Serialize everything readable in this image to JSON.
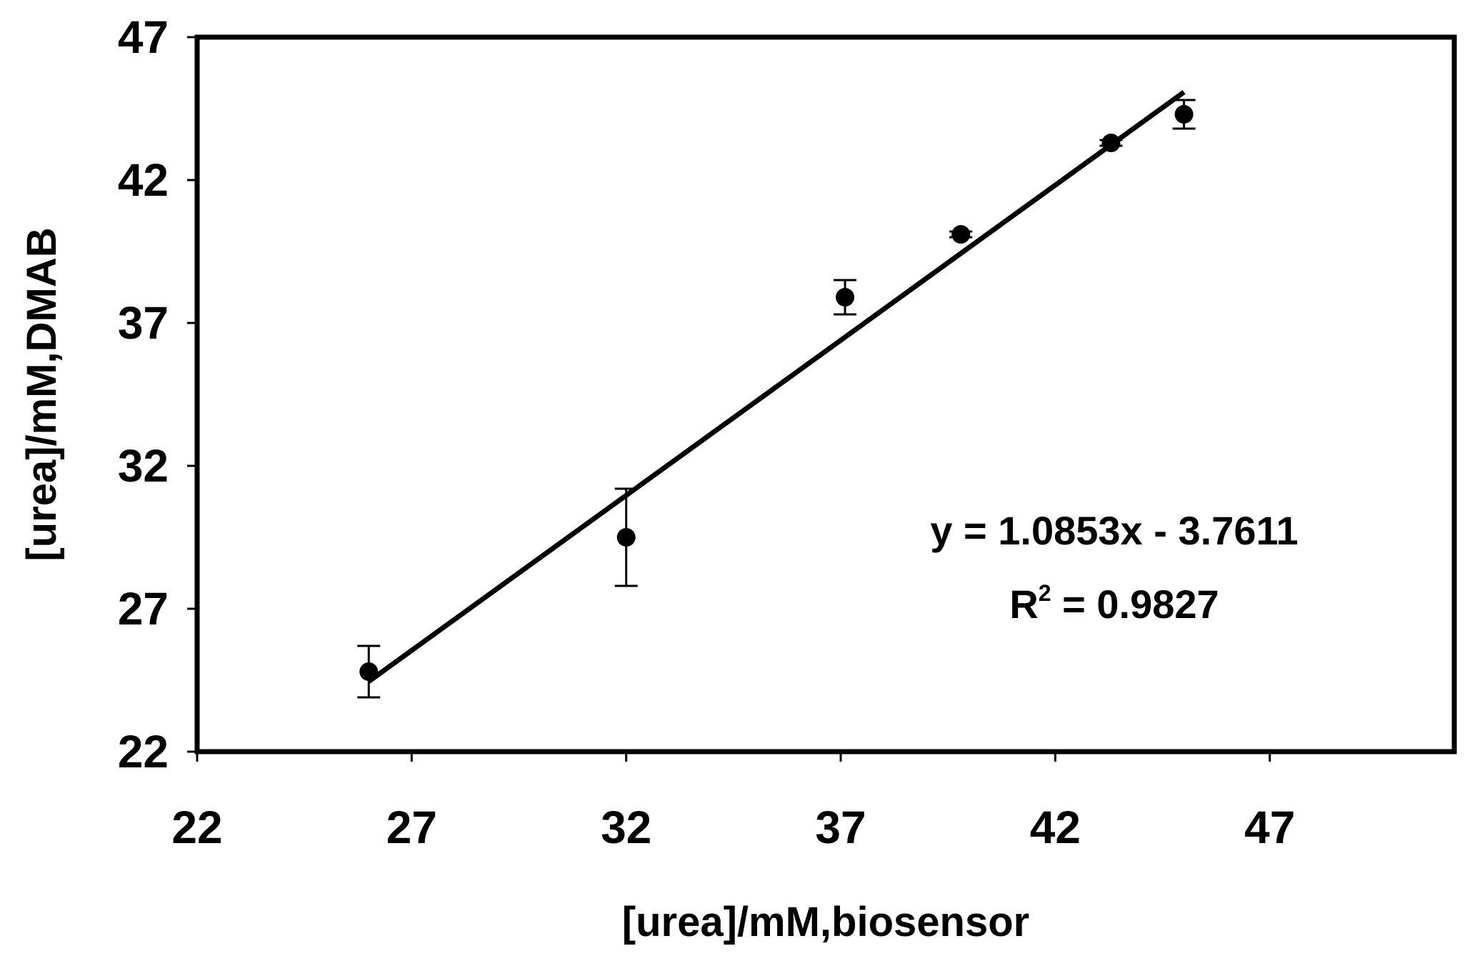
{
  "chart_data": {
    "type": "scatter",
    "title": "",
    "xlabel": "[urea]/mM,biosensor",
    "ylabel": "[urea]/mM,DMAB",
    "xlim": [
      22,
      51.3
    ],
    "ylim": [
      22,
      47
    ],
    "xticks": [
      22,
      27,
      32,
      37,
      42,
      47
    ],
    "yticks": [
      22,
      27,
      32,
      37,
      42,
      47
    ],
    "x_tick_labels": [
      "22",
      "27",
      "32",
      "37",
      "42",
      "47"
    ],
    "y_tick_labels": [
      "22",
      "27",
      "32",
      "37",
      "42",
      "47"
    ],
    "grid": false,
    "legend": "none",
    "points": [
      {
        "x": 26.0,
        "y": 24.8,
        "err": 0.9
      },
      {
        "x": 32.0,
        "y": 29.5,
        "err": 1.7
      },
      {
        "x": 37.1,
        "y": 37.9,
        "err": 0.6
      },
      {
        "x": 39.8,
        "y": 40.1,
        "err": 0.1
      },
      {
        "x": 43.3,
        "y": 43.3,
        "err": 0.1
      },
      {
        "x": 45.0,
        "y": 44.3,
        "err": 0.5
      }
    ],
    "trendline": {
      "slope": 1.0853,
      "intercept": -3.7611,
      "x_range": [
        26.0,
        45.0
      ]
    },
    "equation_text": "y = 1.0853x - 3.7611",
    "r2_label": "R",
    "r2_sup": "2",
    "r2_value": " = 0.9827",
    "colors": {
      "marker": "#000000",
      "line": "#000000",
      "background": "#ffffff"
    }
  }
}
